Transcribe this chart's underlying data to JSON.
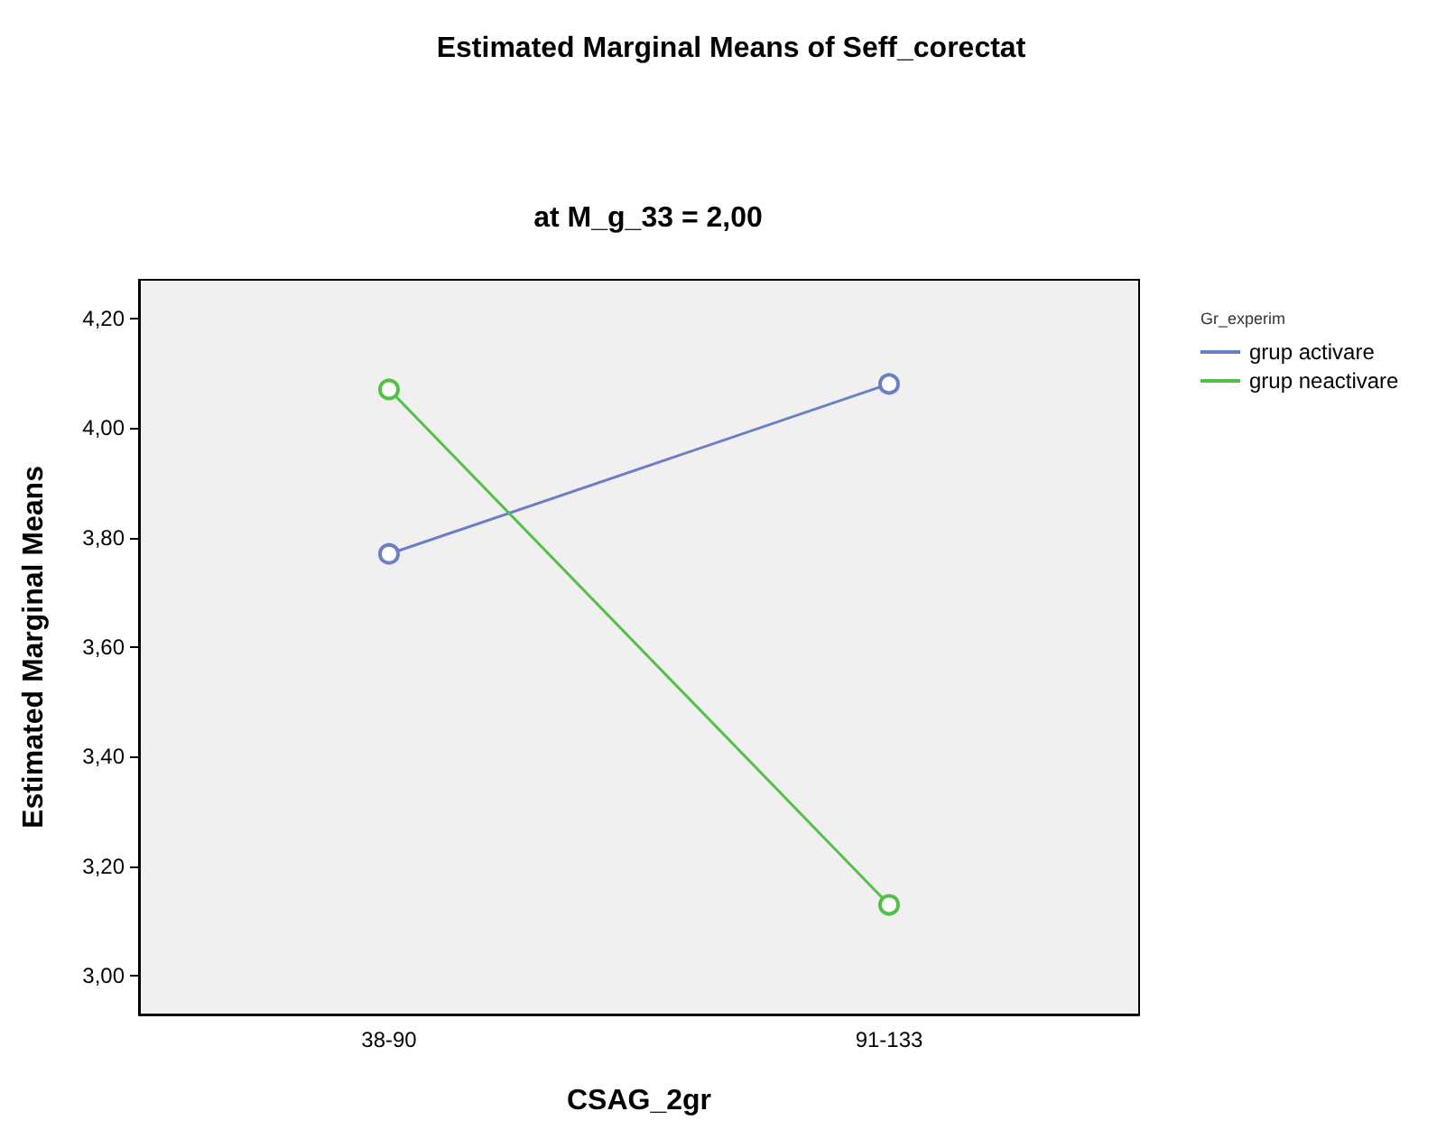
{
  "chart_data": {
    "type": "line",
    "title": "Estimated Marginal Means of Seff_corectat",
    "subtitle": "at M_g_33 = 2,00",
    "xlabel": "CSAG_2gr",
    "ylabel": "Estimated Marginal Means",
    "legend_title": "Gr_experim",
    "categories": [
      "38-90",
      "91-133"
    ],
    "series": [
      {
        "name": "grup activare",
        "color": "#6b7fc6",
        "values": [
          3.77,
          4.08
        ]
      },
      {
        "name": "grup neactivare",
        "color": "#52c046",
        "values": [
          4.07,
          3.13
        ]
      }
    ],
    "ylim": [
      2.93,
      4.27
    ],
    "yticks": [
      {
        "value": 3.0,
        "label": "3,00"
      },
      {
        "value": 3.2,
        "label": "3,20"
      },
      {
        "value": 3.4,
        "label": "3,40"
      },
      {
        "value": 3.6,
        "label": "3,60"
      },
      {
        "value": 3.8,
        "label": "3,80"
      },
      {
        "value": 4.0,
        "label": "4,00"
      },
      {
        "value": 4.2,
        "label": "4,20"
      }
    ],
    "grid": false,
    "legend": "top right",
    "marker": "circle",
    "line_style": "solid"
  }
}
